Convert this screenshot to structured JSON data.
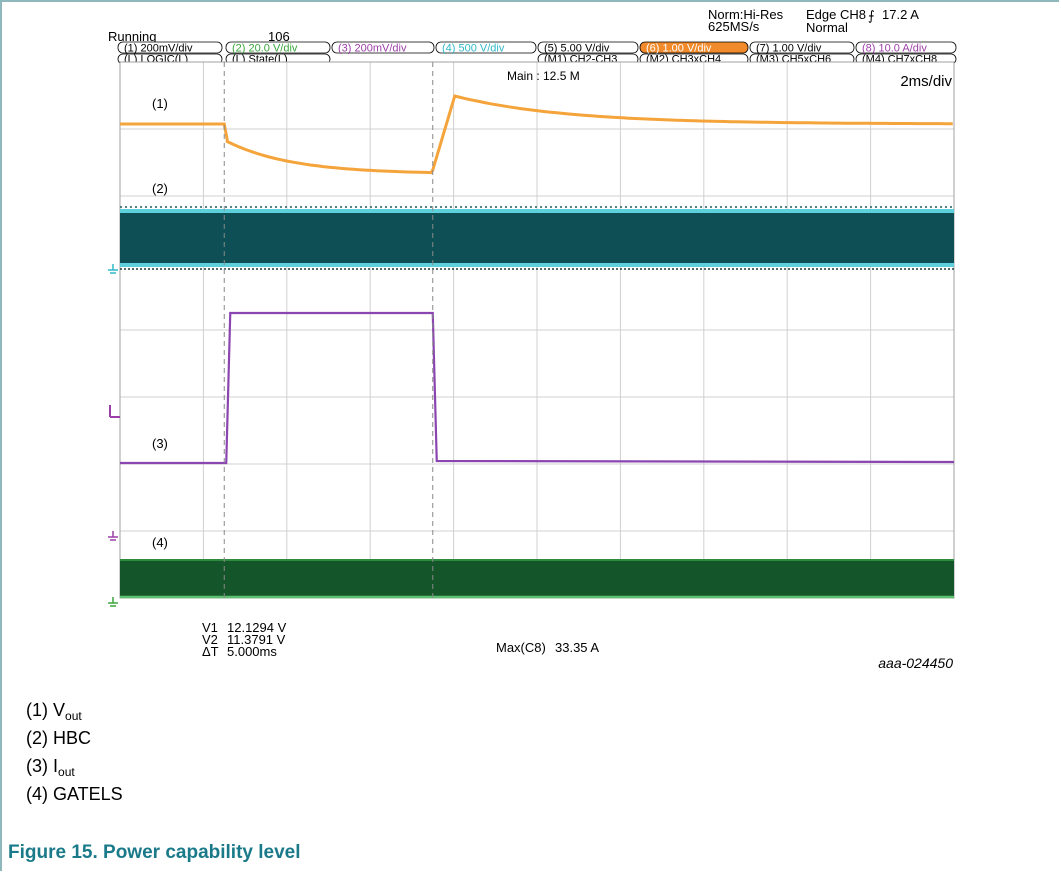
{
  "header": {
    "status": "Running",
    "count": "106",
    "acq_mode": "Norm:Hi-Res",
    "sample_rate": "625MS/s",
    "trigger": "Edge CH8",
    "trigger_level": "17.2 A",
    "trigger_mode": "Normal",
    "main_record": "Main : 12.5 M",
    "timebase": "2ms/div"
  },
  "channels_row1": [
    {
      "id": "1",
      "label": "200mV/div",
      "color": "#000000"
    },
    {
      "id": "2",
      "label": "20.0 V/div",
      "color": "#3aa63a"
    },
    {
      "id": "3",
      "label": "200mV/div",
      "color": "#9c3fa8"
    },
    {
      "id": "4",
      "label": "500 V/div",
      "color": "#30b8c8"
    },
    {
      "id": "5",
      "label": "5.00 V/div",
      "color": "#000000"
    },
    {
      "id": "6",
      "label": "1.00 V/div",
      "color": "#ffffff"
    },
    {
      "id": "7",
      "label": "1.00 V/div",
      "color": "#000000"
    },
    {
      "id": "8",
      "label": "10.0 A/div",
      "color": "#9c3fa8"
    }
  ],
  "channels_row2": [
    {
      "id": "L",
      "label": "LOGIC(L)"
    },
    {
      "id": "L",
      "label": "State(L)"
    },
    {
      "id": "M1",
      "label": "CH2-CH3"
    },
    {
      "id": "M2",
      "label": "CH3xCH4"
    },
    {
      "id": "M3",
      "label": "CH5xCH6"
    },
    {
      "id": "M4",
      "label": "CH7xCH8"
    }
  ],
  "trace_labels": [
    "(1)",
    "(2)",
    "(3)",
    "(4)"
  ],
  "cursor_readout": {
    "v1_label": "V1",
    "v1": "12.1294 V",
    "v2_label": "V2",
    "v2": "11.3791 V",
    "dt_label": "ΔT",
    "dt": "5.000ms"
  },
  "measurement": {
    "label": "Max(C8)",
    "value": "33.35 A"
  },
  "image_id": "aaa-024450",
  "chart_data": {
    "type": "line",
    "x_divisions": 10,
    "y_divisions": 8,
    "cursor_times_ms": [
      2.5,
      7.5
    ],
    "series": [
      {
        "name": "(1)",
        "color": "#f4a43a",
        "note_shape": "step-down-then-overshoot"
      },
      {
        "name": "(2)",
        "color": "#0d4f55"
      },
      {
        "name": "(3)",
        "color": "#8b45b0"
      },
      {
        "name": "(4)",
        "color": "#14552a"
      }
    ]
  },
  "legend": [
    {
      "prefix": "(1) V",
      "sub": "out"
    },
    {
      "prefix": "(2) HBC",
      "sub": ""
    },
    {
      "prefix": "(3) I",
      "sub": "out"
    },
    {
      "prefix": "(4) GATELS",
      "sub": ""
    }
  ],
  "caption": "Figure 15. Power capability level"
}
